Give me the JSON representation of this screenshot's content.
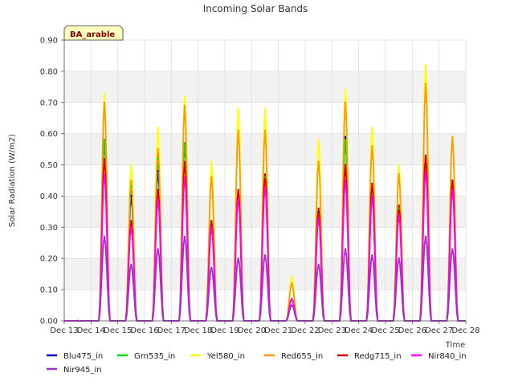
{
  "chart_data": {
    "type": "line",
    "title": "Incoming Solar Bands",
    "site_label": "BA_arable",
    "xlabel": "Time",
    "ylabel": "Solar Radiation (W/m2)",
    "ylim": [
      0,
      0.9
    ],
    "y_ticks": [
      "0.00",
      "0.10",
      "0.20",
      "0.30",
      "0.40",
      "0.50",
      "0.60",
      "0.70",
      "0.80",
      "0.90"
    ],
    "x_ticks": [
      "Dec 13",
      "Dec 14",
      "Dec 15",
      "Dec 16",
      "Dec 17",
      "Dec 18",
      "Dec 19",
      "Dec 20",
      "Dec 21",
      "Dec 22",
      "Dec 23",
      "Dec 24",
      "Dec 25",
      "Dec 26",
      "Dec 27",
      "Dec 28"
    ],
    "days": [
      "Dec 13",
      "Dec 14",
      "Dec 15",
      "Dec 16",
      "Dec 17",
      "Dec 18",
      "Dec 19",
      "Dec 20",
      "Dec 21",
      "Dec 22",
      "Dec 23",
      "Dec 24",
      "Dec 25",
      "Dec 26",
      "Dec 27"
    ],
    "grid": true,
    "legend_position": "bottom",
    "series": [
      {
        "name": "Blu475_in",
        "color": "#0000cc",
        "values": [
          0,
          0.58,
          0.4,
          0.48,
          0.57,
          0.32,
          0.42,
          0.46,
          0.07,
          0.35,
          0.59,
          0.4,
          0.36,
          0.53,
          0.45
        ]
      },
      {
        "name": "Grn535_in",
        "color": "#00dd00",
        "values": [
          0,
          0.58,
          0.43,
          0.52,
          0.57,
          0.32,
          0.42,
          0.46,
          0.07,
          0.36,
          0.58,
          0.4,
          0.36,
          0.53,
          0.45
        ]
      },
      {
        "name": "Yel580_in",
        "color": "#ffff00",
        "values": [
          0,
          0.73,
          0.5,
          0.62,
          0.72,
          0.51,
          0.68,
          0.68,
          0.14,
          0.58,
          0.74,
          0.62,
          0.5,
          0.82,
          0.59
        ]
      },
      {
        "name": "Red655_in",
        "color": "#ff9900",
        "values": [
          0,
          0.7,
          0.45,
          0.55,
          0.69,
          0.46,
          0.61,
          0.61,
          0.12,
          0.51,
          0.7,
          0.56,
          0.47,
          0.76,
          0.59
        ]
      },
      {
        "name": "Redg715_in",
        "color": "#dd0000",
        "values": [
          0,
          0.52,
          0.32,
          0.42,
          0.51,
          0.32,
          0.42,
          0.47,
          0.07,
          0.36,
          0.5,
          0.44,
          0.37,
          0.53,
          0.45
        ]
      },
      {
        "name": "Nir840_in",
        "color": "#ff00ff",
        "values": [
          0,
          0.47,
          0.3,
          0.39,
          0.46,
          0.3,
          0.39,
          0.43,
          0.07,
          0.33,
          0.45,
          0.4,
          0.34,
          0.48,
          0.42
        ]
      },
      {
        "name": "Nir945_in",
        "color": "#9933cc",
        "values": [
          0,
          0.27,
          0.18,
          0.23,
          0.27,
          0.17,
          0.2,
          0.21,
          0.05,
          0.18,
          0.23,
          0.21,
          0.2,
          0.27,
          0.23
        ]
      }
    ]
  }
}
